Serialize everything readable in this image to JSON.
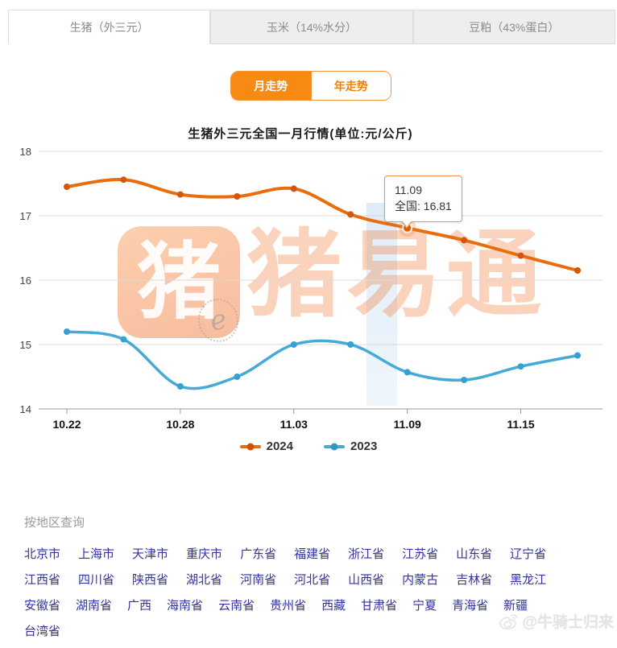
{
  "tabs": [
    {
      "label": "生猪（外三元）",
      "active": true
    },
    {
      "label": "玉米（14%水分）",
      "active": false
    },
    {
      "label": "豆粕（43%蛋白）",
      "active": false
    }
  ],
  "toggle": {
    "monthly_label": "月走势",
    "yearly_label": "年走势",
    "active": "monthly"
  },
  "chart_data": {
    "type": "line",
    "title": "生猪外三元全国一月行情(单位:元/公斤)",
    "x": [
      "10.22",
      "10.25",
      "10.28",
      "10.31",
      "11.03",
      "11.06",
      "11.09",
      "11.12",
      "11.15",
      "11.18"
    ],
    "x_tick_indices": [
      0,
      2,
      4,
      6,
      8
    ],
    "x_tick_labels": [
      "10.22",
      "10.28",
      "11.03",
      "11.09",
      "11.15"
    ],
    "ylim": [
      14,
      18
    ],
    "yticks": [
      18,
      17,
      16,
      15,
      14
    ],
    "grid": true,
    "legend_position": "bottom",
    "series": [
      {
        "name": "2024",
        "color": "#e96d0e",
        "marker_color": "#d4560b",
        "values": [
          17.45,
          17.56,
          17.33,
          17.3,
          17.42,
          17.02,
          16.81,
          16.62,
          16.38,
          16.15
        ]
      },
      {
        "name": "2023",
        "color": "#45aad8",
        "marker_color": "#35a0d2",
        "values": [
          15.2,
          15.08,
          14.35,
          14.5,
          15.0,
          15.0,
          14.57,
          14.45,
          14.66,
          14.83
        ]
      }
    ],
    "highlight": {
      "series": "2024",
      "index": 6,
      "date": "11.09",
      "value": 16.81
    }
  },
  "tooltip": {
    "line1": "11.09",
    "line2": "全国: 16.81"
  },
  "legend": [
    {
      "label": "2024",
      "color": "#e96d0e",
      "dot": "#c9520a"
    },
    {
      "label": "2023",
      "color": "#45aad8",
      "dot": "#2f96c8"
    }
  ],
  "watermark": {
    "icon_char": "猪",
    "brand": "猪易通",
    "e_mark": "e"
  },
  "regions": {
    "title": "按地区查询",
    "rows": [
      [
        "北京市",
        "上海市",
        "天津市",
        "重庆市",
        "广东省",
        "福建省",
        "浙江省",
        "江苏省",
        "山东省",
        "辽宁省"
      ],
      [
        "江西省",
        "四川省",
        "陕西省",
        "湖北省",
        "河南省",
        "河北省",
        "山西省",
        "内蒙古",
        "吉林省",
        "黑龙江"
      ],
      [
        "安徽省",
        "湖南省",
        "广西",
        "海南省",
        "云南省",
        "贵州省",
        "西藏",
        "甘肃省",
        "宁夏",
        "青海省",
        "新疆"
      ],
      [
        "台湾省"
      ]
    ]
  },
  "credit": {
    "text": "@牛骑士归来"
  },
  "colors": {
    "accent": "#f78a12",
    "link": "#3333a0",
    "grid": "#d8d8d8",
    "axis": "#999999",
    "tick_label": "#111111"
  }
}
